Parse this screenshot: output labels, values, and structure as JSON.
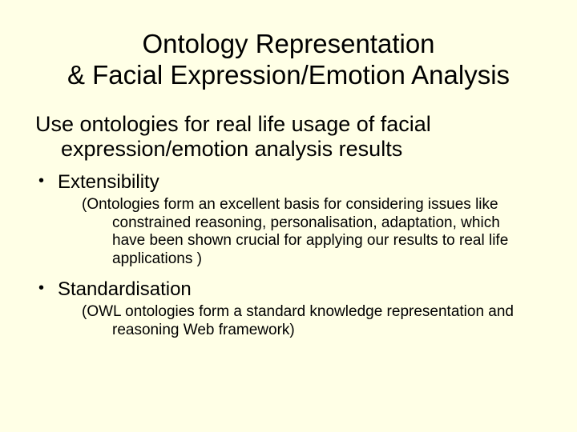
{
  "background_color": "#ffffe6",
  "text_color": "#000000",
  "title_line1": "Ontology Representation",
  "title_line2": "& Facial Expression/Emotion Analysis",
  "lead": "Use ontologies for real life usage of facial expression/emotion analysis results",
  "bullets": [
    {
      "label": "Extensibility",
      "sub": "(Ontologies form an excellent basis for considering issues like constrained reasoning, personalisation, adaptation, which have been shown crucial for applying our results to real life applications )"
    },
    {
      "label": "Standardisation",
      "sub": "(OWL ontologies form a standard knowledge representation and reasoning Web framework)"
    }
  ],
  "font_family": "Gill Sans",
  "title_fontsize": 33,
  "lead_fontsize": 27,
  "bullet_fontsize": 24,
  "sub_fontsize": 19
}
